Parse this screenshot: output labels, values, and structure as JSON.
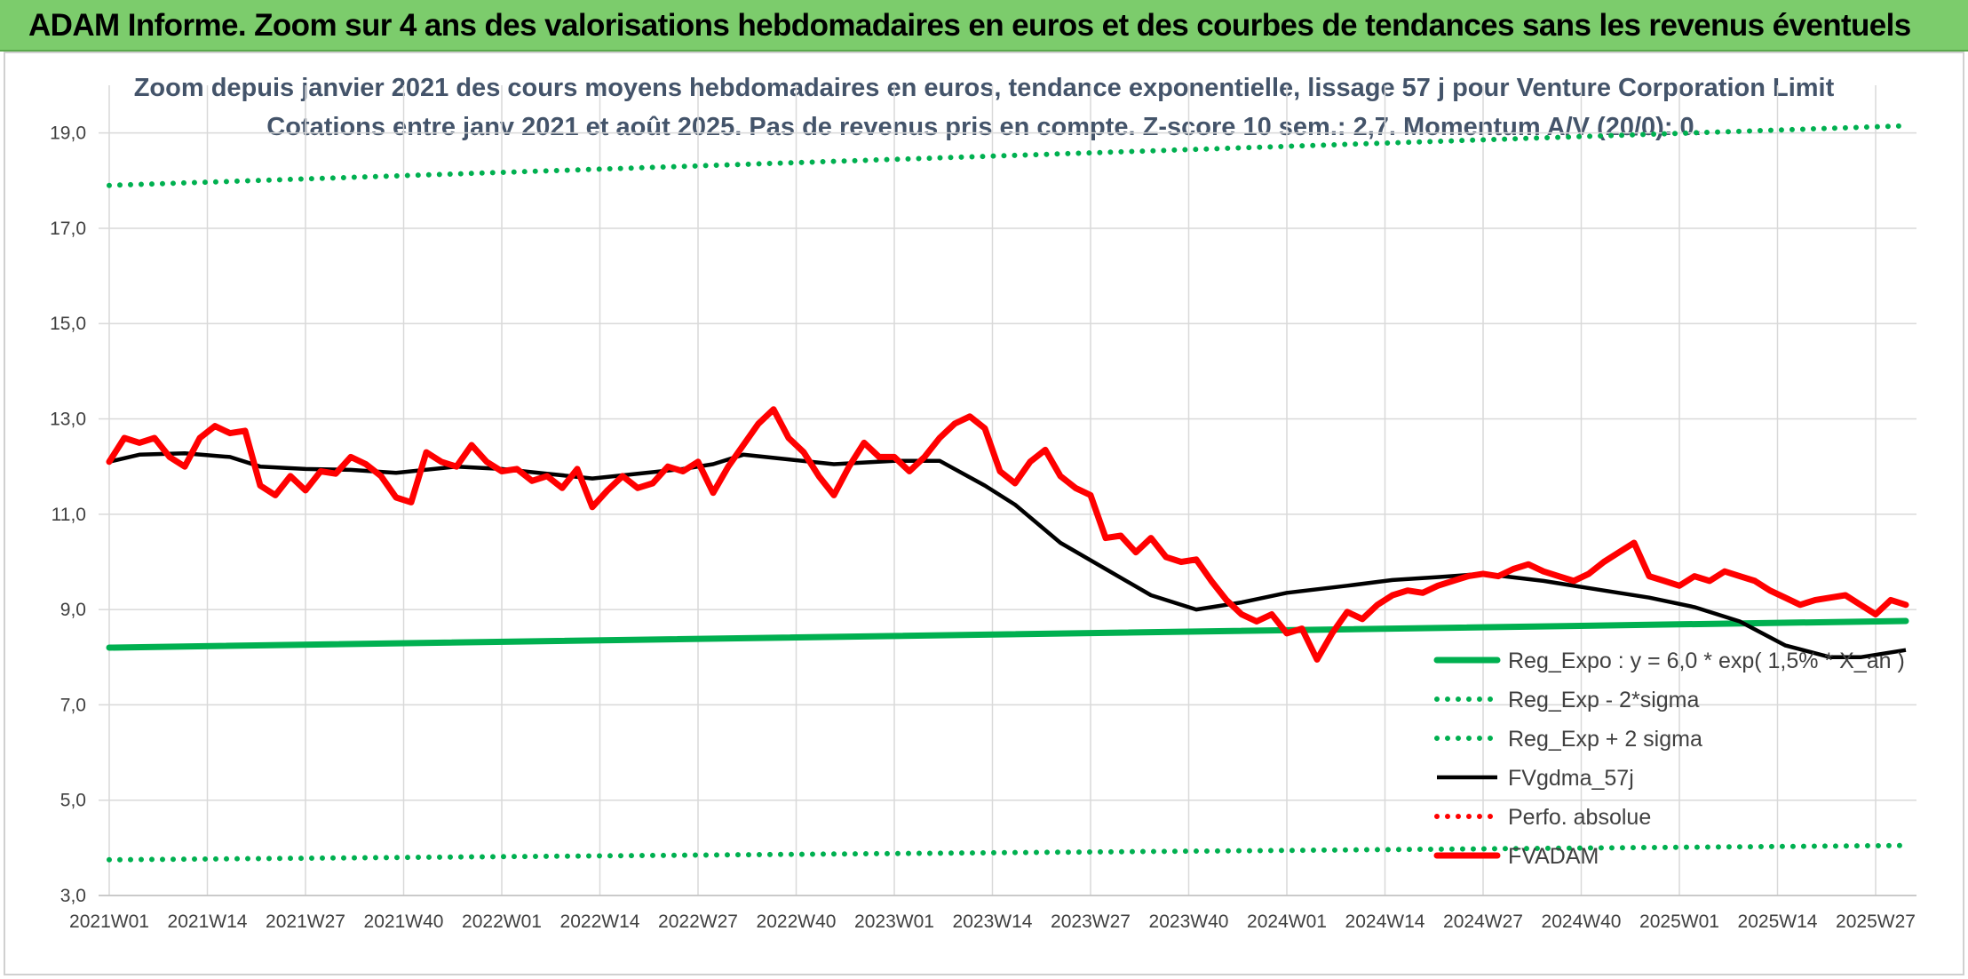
{
  "banner": {
    "title": "ADAM Informe. Zoom sur 4 ans des valorisations hebdomadaires en euros et des courbes de tendances sans les revenus éventuels"
  },
  "chart_data": {
    "type": "line",
    "title_line1": "Zoom depuis janvier 2021 des cours moyens hebdomadaires en euros, tendance exponentielle, lissage 57 j pour Venture Corporation Limit",
    "title_line2": "Cotations entre janv 2021 et août 2025. Pas de revenus pris en compte. Z-score 10 sem.: 2,7. Momentum A/V (20/0): 0.",
    "ylim": [
      3,
      20
    ],
    "y_ticks": [
      "3,0",
      "5,0",
      "7,0",
      "9,0",
      "11,0",
      "13,0",
      "15,0",
      "17,0",
      "19,0"
    ],
    "y_tick_values": [
      3,
      5,
      7,
      9,
      11,
      13,
      15,
      17,
      19
    ],
    "x_ticks": [
      "2021W01",
      "2021W14",
      "2021W27",
      "2021W40",
      "2022W01",
      "2022W14",
      "2022W27",
      "2022W40",
      "2023W01",
      "2023W14",
      "2023W27",
      "2023W40",
      "2024W01",
      "2024W14",
      "2024W27",
      "2024W40",
      "2025W01",
      "2025W14",
      "2025W27"
    ],
    "x_tick_index": [
      0,
      13,
      26,
      39,
      52,
      65,
      78,
      91,
      104,
      117,
      130,
      143,
      156,
      169,
      182,
      195,
      208,
      221,
      234
    ],
    "n_weeks": 239,
    "grid": true,
    "legend_position": "bottom-right",
    "colors": {
      "reg_expo": "#00b050",
      "sigma": "#00b050",
      "fvgdma": "#000000",
      "perfo": "#ff0000",
      "fvadam": "#ff0000",
      "grid": "#d9d9d9",
      "title": "#44546a"
    },
    "series": [
      {
        "name": "Reg_Expo : y = 6,0 * exp( 1,5% * X_an )",
        "style": "solid-thick",
        "color": "#00b050",
        "x": [
          0,
          238
        ],
        "y": [
          8.2,
          8.76
        ]
      },
      {
        "name": "Reg_Exp - 2*sigma",
        "style": "dotted",
        "color": "#00b050",
        "x": [
          0,
          238
        ],
        "y": [
          3.75,
          4.05
        ]
      },
      {
        "name": "Reg_Exp + 2 sigma",
        "style": "dotted",
        "color": "#00b050",
        "x": [
          0,
          238
        ],
        "y": [
          17.9,
          19.15
        ]
      },
      {
        "name": "FVgdma_57j",
        "style": "solid",
        "color": "#000000",
        "x": [
          0,
          4,
          10,
          16,
          20,
          26,
          32,
          38,
          46,
          52,
          58,
          64,
          70,
          76,
          80,
          84,
          90,
          96,
          104,
          110,
          116,
          120,
          126,
          132,
          138,
          144,
          150,
          156,
          164,
          170,
          176,
          182,
          190,
          198,
          204,
          210,
          216,
          222,
          228,
          232,
          238
        ],
        "y": [
          12.1,
          12.25,
          12.28,
          12.2,
          12.0,
          11.95,
          11.93,
          11.87,
          12.0,
          11.95,
          11.85,
          11.75,
          11.85,
          11.95,
          12.05,
          12.25,
          12.15,
          12.05,
          12.12,
          12.12,
          11.6,
          11.2,
          10.4,
          9.85,
          9.3,
          9.0,
          9.15,
          9.35,
          9.5,
          9.62,
          9.68,
          9.75,
          9.6,
          9.4,
          9.25,
          9.05,
          8.75,
          8.25,
          8.0,
          8.0,
          8.15
        ]
      },
      {
        "name": "Perfo. absolue",
        "style": "dotted",
        "color": "#ff0000",
        "x": [],
        "y": []
      },
      {
        "name": "FVADAM",
        "style": "solid-thick",
        "color": "#ff0000",
        "x": [
          0,
          2,
          4,
          6,
          8,
          10,
          12,
          14,
          16,
          18,
          20,
          22,
          24,
          26,
          28,
          30,
          32,
          34,
          36,
          38,
          40,
          42,
          44,
          46,
          48,
          50,
          52,
          54,
          56,
          58,
          60,
          62,
          64,
          66,
          68,
          70,
          72,
          74,
          76,
          78,
          80,
          82,
          84,
          86,
          88,
          90,
          92,
          94,
          96,
          98,
          100,
          102,
          104,
          106,
          108,
          110,
          112,
          114,
          116,
          118,
          120,
          122,
          124,
          126,
          128,
          130,
          132,
          134,
          136,
          138,
          140,
          142,
          144,
          146,
          148,
          150,
          152,
          154,
          156,
          158,
          160,
          162,
          164,
          166,
          168,
          170,
          172,
          174,
          176,
          178,
          180,
          182,
          184,
          186,
          188,
          190,
          192,
          194,
          196,
          198,
          200,
          202,
          204,
          206,
          208,
          210,
          212,
          214,
          216,
          218,
          220,
          222,
          224,
          226,
          228,
          230,
          232,
          234,
          236,
          238
        ],
        "y": [
          12.1,
          12.6,
          12.5,
          12.6,
          12.2,
          12.0,
          12.6,
          12.85,
          12.7,
          12.75,
          11.6,
          11.4,
          11.8,
          11.5,
          11.9,
          11.85,
          12.2,
          12.05,
          11.8,
          11.35,
          11.25,
          12.3,
          12.1,
          12.0,
          12.45,
          12.1,
          11.9,
          11.95,
          11.7,
          11.8,
          11.55,
          11.95,
          11.15,
          11.5,
          11.8,
          11.55,
          11.65,
          12.0,
          11.9,
          12.1,
          11.45,
          12.0,
          12.45,
          12.9,
          13.2,
          12.6,
          12.3,
          11.8,
          11.4,
          12.0,
          12.5,
          12.2,
          12.2,
          11.9,
          12.2,
          12.6,
          12.9,
          13.05,
          12.8,
          11.9,
          11.65,
          12.1,
          12.35,
          11.8,
          11.55,
          11.4,
          10.5,
          10.55,
          10.2,
          10.5,
          10.1,
          10.0,
          10.05,
          9.6,
          9.2,
          8.9,
          8.75,
          8.9,
          8.5,
          8.6,
          7.95,
          8.5,
          8.95,
          8.8,
          9.1,
          9.3,
          9.4,
          9.35,
          9.5,
          9.6,
          9.7,
          9.75,
          9.7,
          9.85,
          9.95,
          9.8,
          9.7,
          9.6,
          9.75,
          10.0,
          10.2,
          10.4,
          9.7,
          9.6,
          9.5,
          9.7,
          9.6,
          9.8,
          9.7,
          9.6,
          9.4,
          9.25,
          9.1,
          9.2,
          9.25,
          9.3,
          9.1,
          8.9,
          9.2,
          9.1
        ]
      }
    ]
  }
}
